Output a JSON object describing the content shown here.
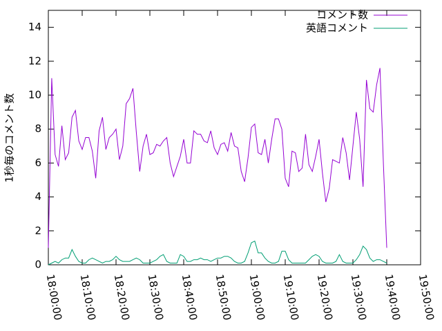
{
  "chart_data": {
    "type": "line",
    "y_label": "1秒毎のコメント数",
    "x": [
      "18:00:00",
      "18:01:00",
      "18:02:00",
      "18:03:00",
      "18:04:00",
      "18:05:00",
      "18:06:00",
      "18:07:00",
      "18:08:00",
      "18:09:00",
      "18:10:00",
      "18:11:00",
      "18:12:00",
      "18:13:00",
      "18:14:00",
      "18:15:00",
      "18:16:00",
      "18:17:00",
      "18:18:00",
      "18:19:00",
      "18:20:00",
      "18:21:00",
      "18:22:00",
      "18:23:00",
      "18:24:00",
      "18:25:00",
      "18:26:00",
      "18:27:00",
      "18:28:00",
      "18:29:00",
      "18:30:00",
      "18:31:00",
      "18:32:00",
      "18:33:00",
      "18:34:00",
      "18:35:00",
      "18:36:00",
      "18:37:00",
      "18:38:00",
      "18:39:00",
      "18:40:00",
      "18:41:00",
      "18:42:00",
      "18:43:00",
      "18:44:00",
      "18:45:00",
      "18:46:00",
      "18:47:00",
      "18:48:00",
      "18:49:00",
      "18:50:00",
      "18:51:00",
      "18:52:00",
      "18:53:00",
      "18:54:00",
      "18:55:00",
      "18:56:00",
      "18:57:00",
      "18:58:00",
      "18:59:00",
      "19:00:00",
      "19:01:00",
      "19:02:00",
      "19:03:00",
      "19:04:00",
      "19:05:00",
      "19:06:00",
      "19:07:00",
      "19:08:00",
      "19:09:00",
      "19:10:00",
      "19:11:00",
      "19:12:00",
      "19:13:00",
      "19:14:00",
      "19:15:00",
      "19:16:00",
      "19:17:00",
      "19:18:00",
      "19:19:00",
      "19:20:00",
      "19:21:00",
      "19:22:00",
      "19:23:00",
      "19:24:00",
      "19:25:00",
      "19:26:00",
      "19:27:00",
      "19:28:00",
      "19:29:00",
      "19:30:00",
      "19:31:00",
      "19:32:00",
      "19:33:00",
      "19:34:00",
      "19:35:00",
      "19:36:00",
      "19:37:00",
      "19:38:00",
      "19:39:00",
      "19:40:00"
    ],
    "series": [
      {
        "name": "コメント数",
        "color": "#9400d3",
        "values": [
          1.0,
          11.0,
          6.5,
          5.8,
          8.2,
          6.2,
          6.6,
          8.7,
          9.1,
          7.3,
          6.8,
          7.5,
          7.5,
          6.7,
          5.1,
          7.9,
          8.7,
          6.8,
          7.5,
          7.7,
          8.0,
          6.2,
          7.0,
          9.5,
          9.8,
          10.4,
          7.8,
          5.5,
          7.0,
          7.7,
          6.5,
          6.6,
          7.1,
          7.0,
          7.3,
          7.5,
          6.0,
          5.2,
          5.8,
          6.4,
          7.4,
          6.0,
          6.0,
          7.9,
          7.7,
          7.7,
          7.3,
          7.2,
          7.9,
          6.9,
          6.5,
          7.1,
          7.2,
          6.7,
          7.8,
          7.0,
          6.9,
          5.5,
          4.9,
          6.3,
          8.1,
          8.3,
          6.6,
          6.5,
          7.4,
          6.0,
          7.4,
          8.6,
          8.6,
          8.0,
          5.1,
          4.6,
          6.7,
          6.6,
          5.5,
          5.7,
          7.7,
          5.9,
          5.5,
          6.4,
          7.4,
          5.4,
          3.7,
          4.5,
          6.2,
          6.1,
          6.0,
          7.5,
          6.6,
          5.0,
          7.0,
          9.0,
          7.4,
          4.6,
          10.9,
          9.2,
          9.0,
          10.6,
          11.6,
          6.0,
          1.0
        ]
      },
      {
        "name": "英語コメント",
        "color": "#009e73",
        "values": [
          0.0,
          0.1,
          0.2,
          0.1,
          0.3,
          0.4,
          0.4,
          0.9,
          0.5,
          0.2,
          0.1,
          0.1,
          0.3,
          0.4,
          0.3,
          0.2,
          0.1,
          0.2,
          0.2,
          0.3,
          0.5,
          0.3,
          0.2,
          0.2,
          0.2,
          0.3,
          0.4,
          0.3,
          0.1,
          0.1,
          0.1,
          0.2,
          0.3,
          0.5,
          0.6,
          0.2,
          0.1,
          0.1,
          0.1,
          0.6,
          0.5,
          0.2,
          0.2,
          0.3,
          0.3,
          0.4,
          0.3,
          0.3,
          0.2,
          0.3,
          0.4,
          0.4,
          0.5,
          0.5,
          0.4,
          0.2,
          0.1,
          0.1,
          0.2,
          0.7,
          1.3,
          1.4,
          0.7,
          0.7,
          0.4,
          0.2,
          0.1,
          0.1,
          0.2,
          0.8,
          0.8,
          0.3,
          0.1,
          0.1,
          0.1,
          0.1,
          0.1,
          0.3,
          0.5,
          0.6,
          0.5,
          0.2,
          0.1,
          0.1,
          0.1,
          0.2,
          0.6,
          0.2,
          0.1,
          0.1,
          0.1,
          0.3,
          0.6,
          1.1,
          0.9,
          0.4,
          0.2,
          0.3,
          0.3,
          0.2,
          0.1
        ]
      }
    ],
    "xlim": [
      "18:00:00",
      "19:50:00"
    ],
    "xticks": [
      "18:00:00",
      "18:10:00",
      "18:20:00",
      "18:30:00",
      "18:40:00",
      "18:50:00",
      "19:00:00",
      "19:10:00",
      "19:20:00",
      "19:30:00",
      "19:40:00",
      "19:50:00"
    ],
    "ylim": [
      0,
      15
    ],
    "yticks": [
      0,
      2,
      4,
      6,
      8,
      10,
      12,
      14
    ],
    "legend": "top right"
  }
}
